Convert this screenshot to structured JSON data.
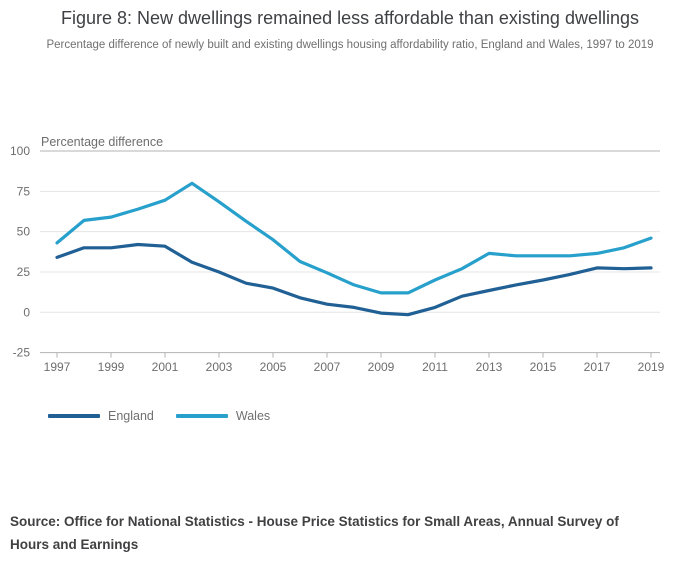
{
  "header": {
    "title": "Figure 8: New dwellings remained less affordable than existing dwellings",
    "subtitle": "Percentage difference of newly built and existing dwellings housing affordability ratio, England and Wales, 1997 to 2019"
  },
  "chart_data": {
    "type": "line",
    "unit_label": "Percentage difference",
    "x": [
      1997,
      1998,
      1999,
      2000,
      2001,
      2002,
      2003,
      2004,
      2005,
      2006,
      2007,
      2008,
      2009,
      2010,
      2011,
      2012,
      2013,
      2014,
      2015,
      2016,
      2017,
      2018,
      2019
    ],
    "series": [
      {
        "name": "England",
        "color": "#206095",
        "values": [
          34,
          40,
          40,
          42,
          41,
          31,
          25,
          18,
          15,
          9,
          5,
          3,
          -0.5,
          -1.5,
          3,
          10,
          13.5,
          17,
          20,
          23.5,
          27.5,
          27,
          27.5
        ]
      },
      {
        "name": "Wales",
        "color": "#27A0CC",
        "values": [
          43,
          57,
          59,
          64,
          69.5,
          80,
          68.5,
          56.5,
          45,
          31.5,
          24.5,
          17,
          12,
          12,
          20,
          27,
          36.5,
          35,
          35,
          35,
          36.5,
          40,
          46
        ]
      }
    ],
    "ylim": [
      -25,
      100
    ],
    "yticks": [
      100,
      75,
      50,
      25,
      0,
      -25
    ],
    "xticks": [
      1997,
      1999,
      2001,
      2003,
      2005,
      2007,
      2009,
      2011,
      2013,
      2015,
      2017,
      2019
    ],
    "grid": true,
    "legend_position": "bottom-left",
    "colors": {
      "grid_light": "#e4e4e4",
      "grid_dark": "#b3b3b3",
      "tick_label": "#6e6e6e"
    }
  },
  "legend": {
    "items": [
      {
        "label": "England"
      },
      {
        "label": "Wales"
      }
    ]
  },
  "source": {
    "text": "Source: Office for National Statistics - House Price Statistics for Small Areas, Annual Survey of Hours and Earnings"
  }
}
